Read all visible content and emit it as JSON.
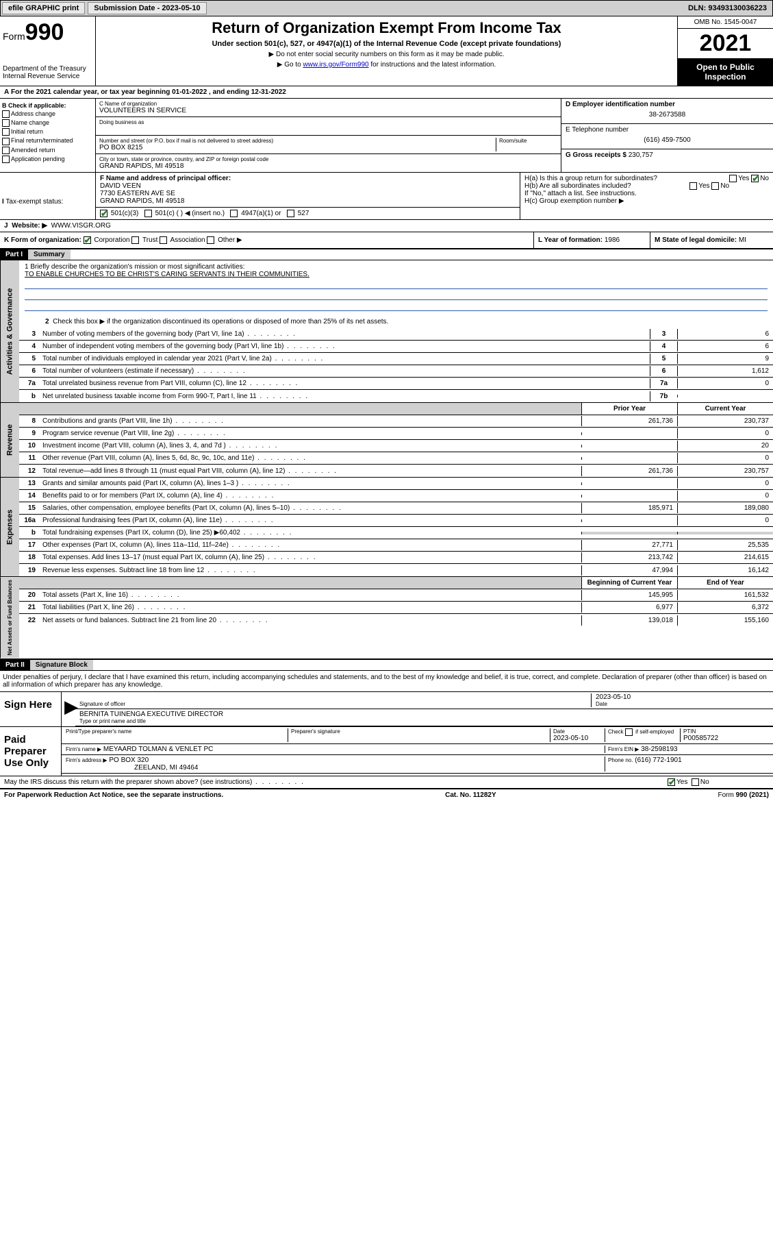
{
  "topbar": {
    "efile": "efile GRAPHIC print",
    "subdate_label": "Submission Date - 2023-05-10",
    "dln": "DLN: 93493130036223"
  },
  "header": {
    "form_word": "Form",
    "form_num": "990",
    "dept": "Department of the Treasury",
    "irs": "Internal Revenue Service",
    "title": "Return of Organization Exempt From Income Tax",
    "sub": "Under section 501(c), 527, or 4947(a)(1) of the Internal Revenue Code (except private foundations)",
    "note1": "▶ Do not enter social security numbers on this form as it may be made public.",
    "note2_pre": "▶ Go to ",
    "note2_link": "www.irs.gov/Form990",
    "note2_post": " for instructions and the latest information.",
    "omb": "OMB No. 1545-0047",
    "year": "2021",
    "inspect1": "Open to Public",
    "inspect2": "Inspection"
  },
  "lineA": "For the 2021 calendar year, or tax year beginning 01-01-2022   , and ending 12-31-2022",
  "checkB": {
    "title": "B Check if applicable:",
    "items": [
      "Address change",
      "Name change",
      "Initial return",
      "Final return/terminated",
      "Amended return",
      "Application pending"
    ]
  },
  "nameC": {
    "label": "C Name of organization",
    "value": "VOLUNTEERS IN SERVICE",
    "dba_label": "Doing business as",
    "addr_label": "Number and street (or P.O. box if mail is not delivered to street address)",
    "room_label": "Room/suite",
    "addr": "PO BOX 8215",
    "city_label": "City or town, state or province, country, and ZIP or foreign postal code",
    "city": "GRAND RAPIDS, MI  49518"
  },
  "boxD": {
    "label": "D Employer identification number",
    "value": "38-2673588"
  },
  "boxE": {
    "label": "E Telephone number",
    "value": "(616) 459-7500"
  },
  "boxG": {
    "label": "G Gross receipts $",
    "value": "230,757"
  },
  "boxF": {
    "label": "F  Name and address of principal officer:",
    "name": "DAVID VEEN",
    "addr1": "7730 EASTERN AVE SE",
    "addr2": "GRAND RAPIDS, MI  49518"
  },
  "boxH": {
    "ha": "H(a)  Is this a group return for subordinates?",
    "hb": "H(b)  Are all subordinates included?",
    "hnote": "If \"No,\" attach a list. See instructions.",
    "hc": "H(c)  Group exemption number ▶"
  },
  "boxI": {
    "label": "Tax-exempt status:",
    "opt1": "501(c)(3)",
    "opt2": "501(c) (  ) ◀ (insert no.)",
    "opt3": "4947(a)(1) or",
    "opt4": "527"
  },
  "boxJ": {
    "label": "Website: ▶",
    "value": "WWW.VISGR.ORG"
  },
  "boxK": {
    "label": "K Form of organization:",
    "opts": [
      "Corporation",
      "Trust",
      "Association",
      "Other ▶"
    ]
  },
  "boxL": {
    "label": "L Year of formation:",
    "value": "1986"
  },
  "boxM": {
    "label": "M State of legal domicile:",
    "value": "MI"
  },
  "part1": {
    "hdr": "Part I",
    "title": "Summary",
    "mission_label": "1   Briefly describe the organization's mission or most significant activities:",
    "mission": "TO ENABLE CHURCHES TO BE CHRIST'S CARING SERVANTS IN THEIR COMMUNITIES.",
    "line2": "Check this box ▶        if the organization discontinued its operations or disposed of more than 25% of its net assets.",
    "lines_gov": [
      {
        "n": "3",
        "t": "Number of voting members of the governing body (Part VI, line 1a)",
        "box": "3",
        "v": "6"
      },
      {
        "n": "4",
        "t": "Number of independent voting members of the governing body (Part VI, line 1b)",
        "box": "4",
        "v": "6"
      },
      {
        "n": "5",
        "t": "Total number of individuals employed in calendar year 2021 (Part V, line 2a)",
        "box": "5",
        "v": "9"
      },
      {
        "n": "6",
        "t": "Total number of volunteers (estimate if necessary)",
        "box": "6",
        "v": "1,612"
      },
      {
        "n": "7a",
        "t": "Total unrelated business revenue from Part VIII, column (C), line 12",
        "box": "7a",
        "v": "0"
      },
      {
        "n": "b",
        "t": "Net unrelated business taxable income from Form 990-T, Part I, line 11",
        "box": "7b",
        "v": ""
      }
    ],
    "col_prior": "Prior Year",
    "col_current": "Current Year",
    "rev": [
      {
        "n": "8",
        "t": "Contributions and grants (Part VIII, line 1h)",
        "p": "261,736",
        "c": "230,737"
      },
      {
        "n": "9",
        "t": "Program service revenue (Part VIII, line 2g)",
        "p": "",
        "c": "0"
      },
      {
        "n": "10",
        "t": "Investment income (Part VIII, column (A), lines 3, 4, and 7d )",
        "p": "",
        "c": "20"
      },
      {
        "n": "11",
        "t": "Other revenue (Part VIII, column (A), lines 5, 6d, 8c, 9c, 10c, and 11e)",
        "p": "",
        "c": "0"
      },
      {
        "n": "12",
        "t": "Total revenue—add lines 8 through 11 (must equal Part VIII, column (A), line 12)",
        "p": "261,736",
        "c": "230,757"
      }
    ],
    "exp": [
      {
        "n": "13",
        "t": "Grants and similar amounts paid (Part IX, column (A), lines 1–3 )",
        "p": "",
        "c": "0"
      },
      {
        "n": "14",
        "t": "Benefits paid to or for members (Part IX, column (A), line 4)",
        "p": "",
        "c": "0"
      },
      {
        "n": "15",
        "t": "Salaries, other compensation, employee benefits (Part IX, column (A), lines 5–10)",
        "p": "185,971",
        "c": "189,080"
      },
      {
        "n": "16a",
        "t": "Professional fundraising fees (Part IX, column (A), line 11e)",
        "p": "",
        "c": "0"
      },
      {
        "n": "b",
        "t": "Total fundraising expenses (Part IX, column (D), line 25) ▶60,402",
        "p": "shade",
        "c": "shade"
      },
      {
        "n": "17",
        "t": "Other expenses (Part IX, column (A), lines 11a–11d, 11f–24e)",
        "p": "27,771",
        "c": "25,535"
      },
      {
        "n": "18",
        "t": "Total expenses. Add lines 13–17 (must equal Part IX, column (A), line 25)",
        "p": "213,742",
        "c": "214,615"
      },
      {
        "n": "19",
        "t": "Revenue less expenses. Subtract line 18 from line 12",
        "p": "47,994",
        "c": "16,142"
      }
    ],
    "col_begin": "Beginning of Current Year",
    "col_end": "End of Year",
    "net": [
      {
        "n": "20",
        "t": "Total assets (Part X, line 16)",
        "p": "145,995",
        "c": "161,532"
      },
      {
        "n": "21",
        "t": "Total liabilities (Part X, line 26)",
        "p": "6,977",
        "c": "6,372"
      },
      {
        "n": "22",
        "t": "Net assets or fund balances. Subtract line 21 from line 20",
        "p": "139,018",
        "c": "155,160"
      }
    ]
  },
  "sidelabels": {
    "gov": "Activities & Governance",
    "rev": "Revenue",
    "exp": "Expenses",
    "net": "Net Assets or Fund Balances"
  },
  "part2": {
    "hdr": "Part II",
    "title": "Signature Block",
    "decl": "Under penalties of perjury, I declare that I have examined this return, including accompanying schedules and statements, and to the best of my knowledge and belief, it is true, correct, and complete. Declaration of preparer (other than officer) is based on all information of which preparer has any knowledge."
  },
  "sign": {
    "left": "Sign Here",
    "sig_label": "Signature of officer",
    "date_label": "Date",
    "date": "2023-05-10",
    "name": "BERNITA TUINENGA  EXECUTIVE DIRECTOR",
    "name_label": "Type or print name and title"
  },
  "paid": {
    "left": "Paid Preparer Use Only",
    "col1": "Print/Type preparer's name",
    "col2": "Preparer's signature",
    "col3": "Date",
    "date": "2023-05-10",
    "col4": "Check        if self-employed",
    "col5l": "PTIN",
    "col5": "P00585722",
    "firm_name_l": "Firm's name      ▶",
    "firm_name": "MEYAARD TOLMAN & VENLET PC",
    "firm_ein_l": "Firm's EIN ▶",
    "firm_ein": "38-2598193",
    "firm_addr_l": "Firm's address ▶",
    "firm_addr": "PO BOX 320",
    "firm_city": "ZEELAND, MI  49464",
    "phone_l": "Phone no.",
    "phone": "(616) 772-1901"
  },
  "footer": {
    "may": "May the IRS discuss this return with the preparer shown above? (see instructions)",
    "pra": "For Paperwork Reduction Act Notice, see the separate instructions.",
    "cat": "Cat. No. 11282Y",
    "form": "Form 990 (2021)"
  }
}
